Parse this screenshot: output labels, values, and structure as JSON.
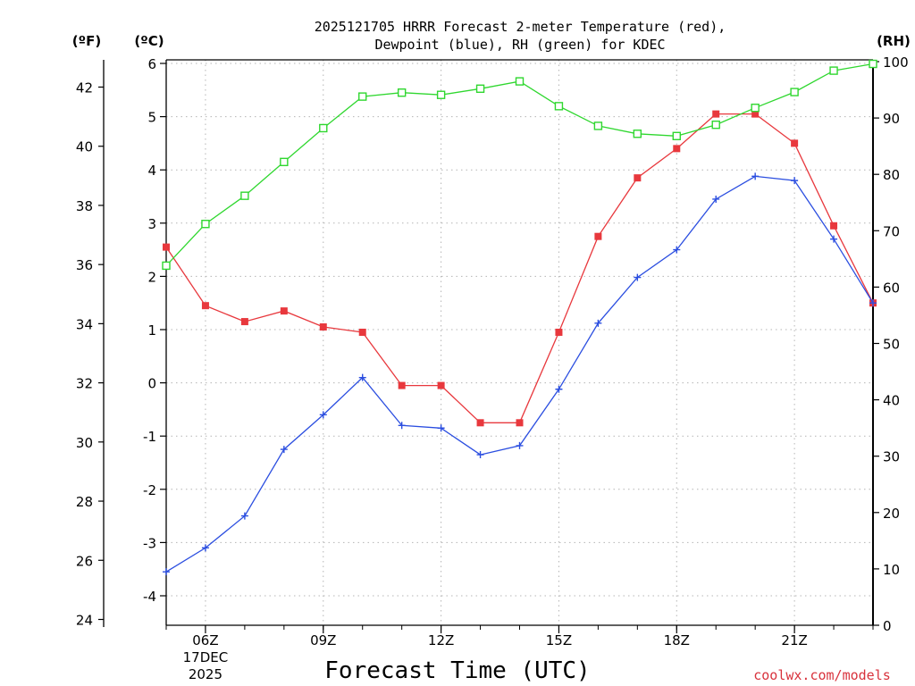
{
  "chart_data": {
    "type": "line",
    "title": "2025121705 HRRR Forecast 2-meter Temperature (red),",
    "subtitle": "Dewpoint (blue), RH (green) for KDEC",
    "xlabel": "Forecast Time (UTC)",
    "left_outer_unit": "(ºF)",
    "left_inner_unit": "(ºC)",
    "right_unit": "(RH)",
    "credit": "coolwx.com/models",
    "x_hours": [
      5,
      6,
      7,
      8,
      9,
      10,
      11,
      12,
      13,
      14,
      15,
      16,
      17,
      18,
      19,
      20,
      21,
      22,
      23
    ],
    "x_ticks": [
      {
        "hour": 6,
        "label": "06Z",
        "sub1": "17DEC",
        "sub2": "2025"
      },
      {
        "hour": 9,
        "label": "09Z"
      },
      {
        "hour": 12,
        "label": "12Z"
      },
      {
        "hour": 15,
        "label": "15Z"
      },
      {
        "hour": 18,
        "label": "18Z"
      },
      {
        "hour": 21,
        "label": "21Z"
      }
    ],
    "xlim": [
      5,
      23
    ],
    "celsius_ticks": [
      "-4",
      "-3",
      "-2",
      "-1",
      "0",
      "1",
      "2",
      "3",
      "4",
      "5",
      "6"
    ],
    "celsius_lim": [
      -4.5,
      6
    ],
    "fahrenheit_ticks": [
      "24",
      "26",
      "28",
      "30",
      "32",
      "34",
      "36",
      "38",
      "40",
      "42"
    ],
    "rh_ticks": [
      "0",
      "10",
      "20",
      "30",
      "40",
      "50",
      "60",
      "70",
      "80",
      "90",
      "100"
    ],
    "rh_lim": [
      0,
      100
    ],
    "grid": true,
    "series": [
      {
        "name": "Temperature",
        "color": "#e8383d",
        "axis": "celsius",
        "marker": "filled-square",
        "values": [
          2.55,
          1.45,
          1.15,
          1.35,
          1.05,
          0.95,
          -0.05,
          -0.05,
          -0.75,
          -0.75,
          0.95,
          2.75,
          3.85,
          4.4,
          5.05,
          5.05,
          4.5,
          2.95,
          1.5
        ]
      },
      {
        "name": "Dewpoint",
        "color": "#2b4ee0",
        "axis": "celsius",
        "marker": "plus",
        "values": [
          -3.55,
          -3.1,
          -2.5,
          -1.25,
          -0.6,
          0.1,
          -0.8,
          -0.85,
          -1.35,
          -1.18,
          -0.12,
          1.12,
          1.98,
          2.5,
          3.45,
          3.88,
          3.8,
          2.7,
          1.5
        ]
      },
      {
        "name": "RH",
        "color": "#2fd72f",
        "axis": "rh",
        "marker": "open-square",
        "values": [
          63.8,
          71.2,
          76.2,
          82.2,
          88.2,
          93.8,
          94.5,
          94.1,
          95.2,
          96.5,
          92.1,
          88.6,
          87.2,
          86.8,
          88.8,
          91.8,
          94.6,
          98.4,
          99.6
        ]
      }
    ]
  }
}
